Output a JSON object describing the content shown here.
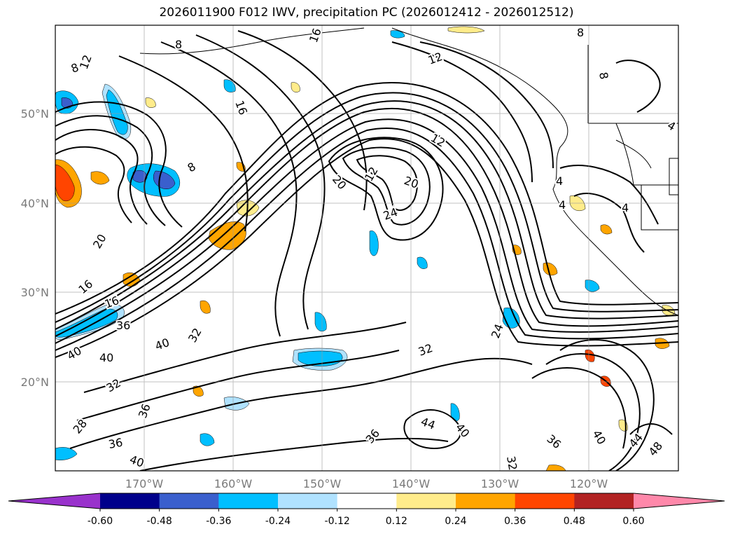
{
  "title": "2026011900 F012 IWV, precipitation PC (2026012412 - 2026012512)",
  "axes": {
    "lon_ticks": [
      "170°W",
      "160°W",
      "150°W",
      "140°W",
      "130°W",
      "120°W"
    ],
    "lat_ticks": [
      "50°N",
      "40°N",
      "30°N",
      "20°N"
    ]
  },
  "colorbar": {
    "levels": [
      "-0.60",
      "-0.48",
      "-0.36",
      "-0.24",
      "-0.12",
      "0.12",
      "0.24",
      "0.36",
      "0.48",
      "0.60"
    ],
    "colors": [
      "#9932cc",
      "#00008b",
      "#3a5fcd",
      "#00bfff",
      "#b0e2ff",
      "#ffffff",
      "#ffec8b",
      "#ffa500",
      "#ff4500",
      "#b22222",
      "#ff88aa"
    ]
  },
  "contour_labels": [
    {
      "text": "8"
    },
    {
      "text": "12"
    },
    {
      "text": "8"
    },
    {
      "text": "16"
    },
    {
      "text": "8"
    },
    {
      "text": "12"
    },
    {
      "text": "12"
    },
    {
      "text": "20"
    },
    {
      "text": "12"
    },
    {
      "text": "20"
    },
    {
      "text": "24"
    },
    {
      "text": "20"
    },
    {
      "text": "16"
    },
    {
      "text": "16"
    },
    {
      "text": "36"
    },
    {
      "text": "40"
    },
    {
      "text": "40"
    },
    {
      "text": "40"
    },
    {
      "text": "32"
    },
    {
      "text": "32"
    },
    {
      "text": "36"
    },
    {
      "text": "28"
    },
    {
      "text": "36"
    },
    {
      "text": "40"
    },
    {
      "text": "32"
    },
    {
      "text": "24"
    },
    {
      "text": "44"
    },
    {
      "text": "40"
    },
    {
      "text": "36"
    },
    {
      "text": "36"
    },
    {
      "text": "32"
    },
    {
      "text": "40"
    },
    {
      "text": "44"
    },
    {
      "text": "48"
    },
    {
      "text": "4"
    },
    {
      "text": "4"
    },
    {
      "text": "4"
    },
    {
      "text": "4"
    },
    {
      "text": "8"
    },
    {
      "text": "8"
    },
    {
      "text": "16"
    }
  ]
}
